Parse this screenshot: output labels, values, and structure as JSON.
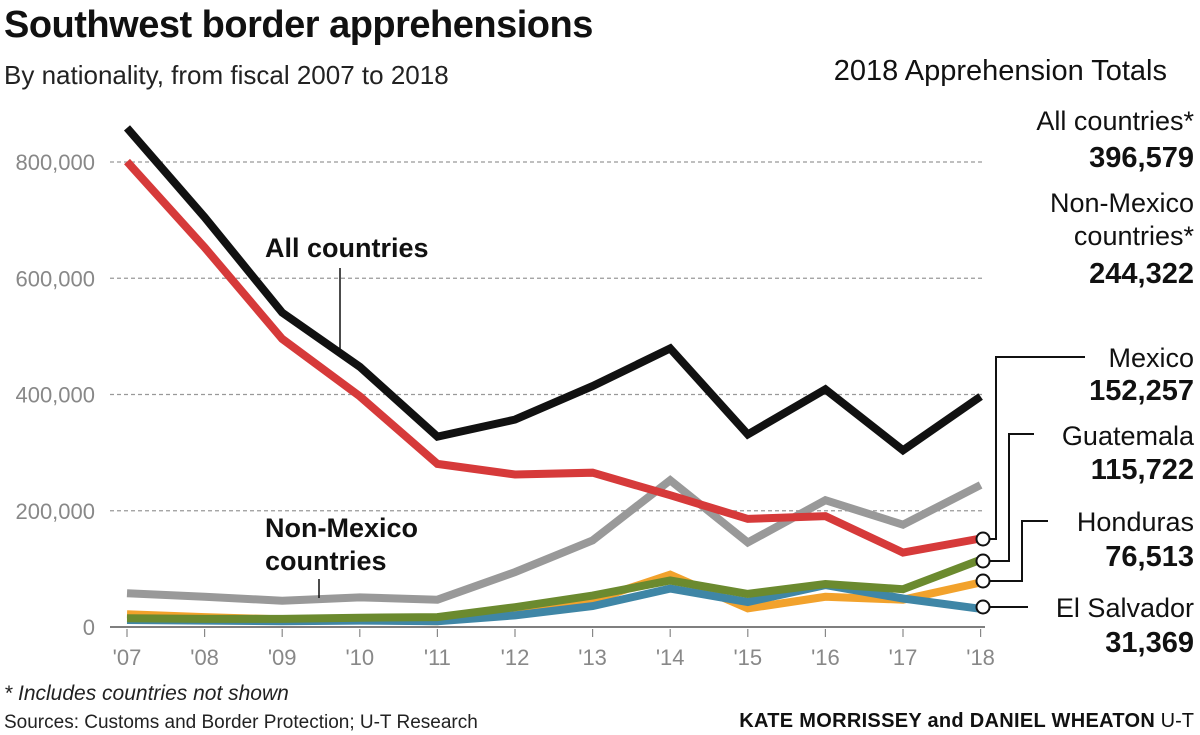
{
  "header": {
    "title": "Southwest border apprehensions",
    "subtitle": "By nationality, from fiscal 2007 to 2018",
    "totals_heading": "2018 Apprehension Totals"
  },
  "footer": {
    "footnote": "* Includes countries not shown",
    "sources": "Sources: Customs and Border Protection; U-T Research",
    "credit_authors": "KATE MORRISSEY and DANIEL WHEATON",
    "credit_org": "U-T"
  },
  "callouts": {
    "all_countries": "All countries",
    "non_mexico_line1": "Non-Mexico",
    "non_mexico_line2": "countries"
  },
  "totals": [
    {
      "name_lines": [
        "All countries*"
      ],
      "value": "396,579"
    },
    {
      "name_lines": [
        "Non-Mexico",
        "countries*"
      ],
      "value": "244,322"
    },
    {
      "name_lines": [
        "Mexico"
      ],
      "value": "152,257"
    },
    {
      "name_lines": [
        "Guatemala"
      ],
      "value": "115,722"
    },
    {
      "name_lines": [
        "Honduras"
      ],
      "value": "76,513"
    },
    {
      "name_lines": [
        "El Salvador"
      ],
      "value": "31,369"
    }
  ],
  "chart_data": {
    "type": "line",
    "x": [
      "'07",
      "'08",
      "'09",
      "'10",
      "'11",
      "'12",
      "'13",
      "'14",
      "'15",
      "'16",
      "'17",
      "'18"
    ],
    "y_ticks": [
      "0",
      "200,000",
      "400,000",
      "600,000",
      "800,000"
    ],
    "y_tick_values": [
      0,
      200000,
      400000,
      600000,
      800000
    ],
    "ylim": [
      0,
      860000
    ],
    "grid": true,
    "series": [
      {
        "name": "All countries",
        "color": "#111111",
        "values": [
          858638,
          705005,
          540865,
          447731,
          327577,
          356873,
          414397,
          479371,
          331333,
          408870,
          303916,
          396579
        ]
      },
      {
        "name": "Mexico",
        "color": "#d63a3a",
        "values": [
          800634,
          653035,
          495582,
          396819,
          280580,
          262341,
          265409,
          226771,
          186017,
          190760,
          127938,
          152257
        ]
      },
      {
        "name": "Non-Mexico countries",
        "color": "#999999",
        "values": [
          58004,
          51970,
          45283,
          50912,
          46997,
          94532,
          148988,
          252600,
          145316,
          218110,
          175978,
          244322
        ]
      },
      {
        "name": "Honduras",
        "color": "#f2a22c",
        "values": [
          22000,
          17000,
          13000,
          12000,
          10000,
          30000,
          46000,
          90000,
          32000,
          52000,
          47000,
          76513
        ]
      },
      {
        "name": "El Salvador",
        "color": "#3f86a6",
        "values": [
          12000,
          11000,
          10000,
          11000,
          10000,
          20000,
          36000,
          66000,
          43000,
          72000,
          49000,
          31369
        ]
      },
      {
        "name": "Guatemala",
        "color": "#6b8a2f",
        "values": [
          15000,
          14000,
          14000,
          16000,
          17000,
          34000,
          54000,
          80000,
          57000,
          74000,
          65000,
          115722
        ]
      }
    ]
  }
}
